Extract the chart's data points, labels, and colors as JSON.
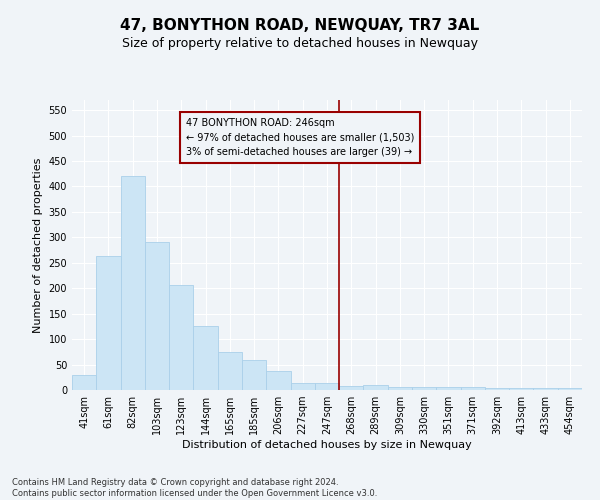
{
  "title": "47, BONYTHON ROAD, NEWQUAY, TR7 3AL",
  "subtitle": "Size of property relative to detached houses in Newquay",
  "xlabel": "Distribution of detached houses by size in Newquay",
  "ylabel": "Number of detached properties",
  "footer_line1": "Contains HM Land Registry data © Crown copyright and database right 2024.",
  "footer_line2": "Contains public sector information licensed under the Open Government Licence v3.0.",
  "bar_labels": [
    "41sqm",
    "61sqm",
    "82sqm",
    "103sqm",
    "123sqm",
    "144sqm",
    "165sqm",
    "185sqm",
    "206sqm",
    "227sqm",
    "247sqm",
    "268sqm",
    "289sqm",
    "309sqm",
    "330sqm",
    "351sqm",
    "371sqm",
    "392sqm",
    "413sqm",
    "433sqm",
    "454sqm"
  ],
  "bar_values": [
    30,
    263,
    420,
    290,
    207,
    125,
    75,
    58,
    38,
    13,
    13,
    8,
    9,
    5,
    5,
    5,
    5,
    4,
    4,
    3,
    4
  ],
  "bar_color": "#cce5f5",
  "bar_edgecolor": "#aad0ea",
  "ylim": [
    0,
    570
  ],
  "yticks": [
    0,
    50,
    100,
    150,
    200,
    250,
    300,
    350,
    400,
    450,
    500,
    550
  ],
  "vline_x": 10.5,
  "vline_color": "#990000",
  "annotation_title": "47 BONYTHON ROAD: 246sqm",
  "annotation_line1": "← 97% of detached houses are smaller (1,503)",
  "annotation_line2": "3% of semi-detached houses are larger (39) →",
  "bg_color": "#f0f4f8",
  "grid_color": "#ffffff",
  "title_fontsize": 11,
  "subtitle_fontsize": 9,
  "xlabel_fontsize": 8,
  "ylabel_fontsize": 8,
  "tick_fontsize": 7,
  "annot_fontsize": 7,
  "footer_fontsize": 6
}
